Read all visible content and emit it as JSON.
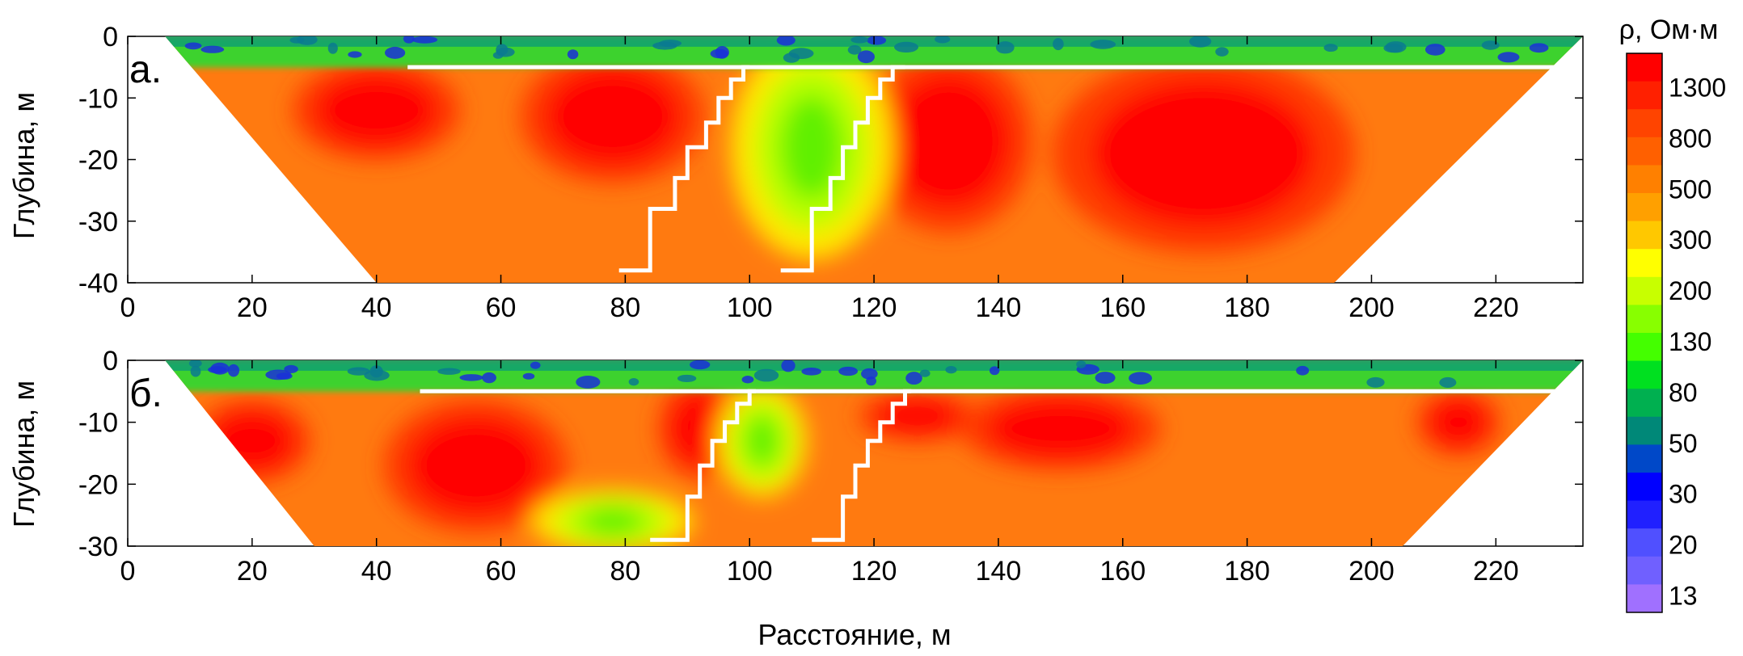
{
  "chart_data": [
    {
      "type": "heatmap",
      "panel_label": "а.",
      "ylabel": "Глубина, м",
      "xlim": [
        0,
        234
      ],
      "ylim": [
        -40,
        0
      ],
      "x_ticks": [
        0,
        20,
        40,
        60,
        80,
        100,
        120,
        140,
        160,
        180,
        200,
        220
      ],
      "y_ticks": [
        0,
        -10,
        -20,
        -30,
        -40
      ],
      "section_top": {
        "x_start": 6,
        "x_end": 234
      },
      "section_bottom": {
        "x_start": 40,
        "x_end": 194,
        "depth": -40
      },
      "boundary_depth": -5,
      "boundary_x_range": [
        45,
        230
      ],
      "anomalies": [
        {
          "kind": "high",
          "x": 40,
          "z": -12,
          "rx": 10,
          "rz": 6
        },
        {
          "kind": "high",
          "x": 78,
          "z": -13,
          "rx": 11,
          "rz": 8
        },
        {
          "kind": "high",
          "x": 132,
          "z": -17,
          "rx": 10,
          "rz": 11
        },
        {
          "kind": "high",
          "x": 173,
          "z": -19,
          "rx": 18,
          "rz": 12
        },
        {
          "kind": "low",
          "x": 110,
          "z": -18,
          "rx": 9,
          "rz": 14
        }
      ],
      "fault_lines": [
        [
          [
            79,
            -38
          ],
          [
            84,
            -38
          ],
          [
            84,
            -28
          ],
          [
            88,
            -28
          ],
          [
            88,
            -23
          ],
          [
            90,
            -23
          ],
          [
            90,
            -18
          ],
          [
            93,
            -18
          ],
          [
            93,
            -14
          ],
          [
            95,
            -14
          ],
          [
            95,
            -10
          ],
          [
            97,
            -10
          ],
          [
            97,
            -7
          ],
          [
            99,
            -7
          ],
          [
            99,
            -5
          ],
          [
            100,
            -5
          ]
        ],
        [
          [
            105,
            -38
          ],
          [
            110,
            -38
          ],
          [
            110,
            -28
          ],
          [
            113,
            -28
          ],
          [
            113,
            -23
          ],
          [
            115,
            -23
          ],
          [
            115,
            -18
          ],
          [
            117,
            -18
          ],
          [
            117,
            -14
          ],
          [
            119,
            -14
          ],
          [
            119,
            -10
          ],
          [
            121,
            -10
          ],
          [
            121,
            -7
          ],
          [
            123,
            -7
          ],
          [
            123,
            -5
          ],
          [
            125,
            -5
          ]
        ]
      ]
    },
    {
      "type": "heatmap",
      "panel_label": "б.",
      "ylabel": "Глубина, м",
      "xlabel": "Расстояние, м",
      "xlim": [
        0,
        234
      ],
      "ylim": [
        -30,
        0
      ],
      "x_ticks": [
        0,
        20,
        40,
        60,
        80,
        100,
        120,
        140,
        160,
        180,
        200,
        220
      ],
      "y_ticks": [
        0,
        -10,
        -20,
        -30
      ],
      "section_top": {
        "x_start": 6,
        "x_end": 234
      },
      "section_bottom": {
        "x_start": 30,
        "x_end": 205,
        "depth": -30
      },
      "boundary_depth": -5,
      "boundary_x_range": [
        47,
        230
      ],
      "anomalies": [
        {
          "kind": "high",
          "x": 20,
          "z": -13,
          "rx": 7,
          "rz": 5
        },
        {
          "kind": "high",
          "x": 56,
          "z": -17,
          "rx": 11,
          "rz": 8
        },
        {
          "kind": "high",
          "x": 92,
          "z": -11,
          "rx": 5,
          "rz": 6
        },
        {
          "kind": "high",
          "x": 127,
          "z": -9,
          "rx": 7,
          "rz": 3
        },
        {
          "kind": "high",
          "x": 150,
          "z": -11,
          "rx": 12,
          "rz": 5
        },
        {
          "kind": "high",
          "x": 214,
          "z": -10,
          "rx": 5,
          "rz": 4
        },
        {
          "kind": "low",
          "x": 102,
          "z": -13,
          "rx": 5,
          "rz": 7
        },
        {
          "kind": "low",
          "x": 78,
          "z": -26,
          "rx": 9,
          "rz": 4
        }
      ],
      "fault_lines": [
        [
          [
            84,
            -29
          ],
          [
            90,
            -29
          ],
          [
            90,
            -22
          ],
          [
            92,
            -22
          ],
          [
            92,
            -17
          ],
          [
            94,
            -17
          ],
          [
            94,
            -13
          ],
          [
            96,
            -13
          ],
          [
            96,
            -10
          ],
          [
            98,
            -10
          ],
          [
            98,
            -7
          ],
          [
            100,
            -7
          ],
          [
            100,
            -5
          ],
          [
            101,
            -5
          ]
        ],
        [
          [
            110,
            -29
          ],
          [
            115,
            -29
          ],
          [
            115,
            -22
          ],
          [
            117,
            -22
          ],
          [
            117,
            -17
          ],
          [
            119,
            -17
          ],
          [
            119,
            -13
          ],
          [
            121,
            -13
          ],
          [
            121,
            -10
          ],
          [
            123,
            -10
          ],
          [
            123,
            -7
          ],
          [
            125,
            -7
          ],
          [
            125,
            -5
          ],
          [
            126,
            -5
          ]
        ]
      ]
    }
  ],
  "colorbar": {
    "title": "ρ, Ом·м",
    "labels": [
      "1300",
      "800",
      "500",
      "300",
      "200",
      "130",
      "80",
      "50",
      "30",
      "20",
      "13"
    ],
    "colors": [
      "#ff0000",
      "#ff2000",
      "#ff4400",
      "#ff6000",
      "#ff8000",
      "#ffa000",
      "#ffc800",
      "#ffff00",
      "#c8ff00",
      "#88ff00",
      "#44ff00",
      "#00e020",
      "#00b050",
      "#008878",
      "#0048c8",
      "#0000ff",
      "#2020ff",
      "#5050ff",
      "#7060ff",
      "#a070ff"
    ]
  }
}
